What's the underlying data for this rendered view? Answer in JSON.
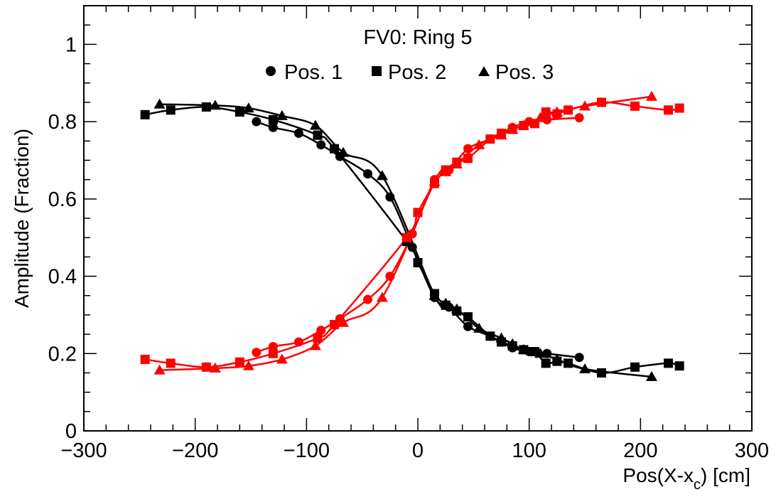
{
  "chart_data": {
    "type": "scatter",
    "title": "FV0: Ring 5",
    "xlabel": "Pos(X-x",
    "xlabel_sub": "c",
    "xlabel_suffix": ") [cm]",
    "ylabel": "Amplitude (Fraction)",
    "xlim": [
      -300,
      300
    ],
    "ylim": [
      0,
      1.1
    ],
    "xticks": [
      -300,
      -200,
      -100,
      0,
      100,
      200,
      300
    ],
    "xtick_labels": [
      "−300",
      "−200",
      "−100",
      "0",
      "100",
      "200",
      "300"
    ],
    "yticks": [
      0,
      0.2,
      0.4,
      0.6,
      0.8,
      1
    ],
    "ytick_labels": [
      "0",
      "0.2",
      "0.4",
      "0.6",
      "0.8",
      "1"
    ],
    "grid": false,
    "legend_position": "top-center",
    "legend": [
      {
        "label": "Pos. 1",
        "marker": "circle"
      },
      {
        "label": "Pos. 2",
        "marker": "square"
      },
      {
        "label": "Pos. 3",
        "marker": "triangle"
      }
    ],
    "colors": {
      "side_a": "#000000",
      "side_b": "#ff0000"
    },
    "series": [
      {
        "marker": "circle",
        "color": "#000000",
        "x": [
          -145,
          -130,
          -107,
          -87,
          -70,
          -45,
          -25,
          -5,
          15,
          28,
          45,
          65,
          85,
          100,
          116,
          145
        ],
        "y": [
          0.8,
          0.785,
          0.77,
          0.74,
          0.71,
          0.665,
          0.605,
          0.475,
          0.345,
          0.32,
          0.27,
          0.245,
          0.215,
          0.205,
          0.2,
          0.19
        ]
      },
      {
        "marker": "square",
        "color": "#000000",
        "x": [
          -245,
          -222,
          -190,
          -160,
          -130,
          -90,
          -75,
          -10,
          0,
          15,
          25,
          35,
          45,
          65,
          75,
          85,
          95,
          105,
          115,
          125,
          135,
          165,
          195,
          225,
          235
        ],
        "y": [
          0.818,
          0.83,
          0.838,
          0.825,
          0.805,
          0.765,
          0.73,
          0.49,
          0.435,
          0.355,
          0.325,
          0.31,
          0.295,
          0.245,
          0.23,
          0.22,
          0.21,
          0.205,
          0.175,
          0.18,
          0.175,
          0.15,
          0.165,
          0.175,
          0.168
        ]
      },
      {
        "marker": "triangle",
        "color": "#000000",
        "x": [
          -232,
          -182,
          -152,
          -122,
          -92,
          -67,
          -32,
          15,
          25,
          35,
          55,
          75,
          85,
          95,
          110,
          125,
          150,
          210
        ],
        "y": [
          0.845,
          0.842,
          0.835,
          0.815,
          0.79,
          0.72,
          0.66,
          0.35,
          0.33,
          0.315,
          0.265,
          0.24,
          0.225,
          0.21,
          0.2,
          0.185,
          0.16,
          0.14
        ]
      },
      {
        "marker": "circle",
        "color": "#ff0000",
        "x": [
          -145,
          -130,
          -107,
          -87,
          -70,
          -45,
          -25,
          -5,
          15,
          28,
          45,
          65,
          85,
          100,
          116,
          145
        ],
        "y": [
          0.203,
          0.218,
          0.23,
          0.26,
          0.29,
          0.34,
          0.4,
          0.51,
          0.65,
          0.675,
          0.73,
          0.755,
          0.785,
          0.8,
          0.805,
          0.81
        ]
      },
      {
        "marker": "square",
        "color": "#ff0000",
        "x": [
          -245,
          -222,
          -190,
          -160,
          -130,
          -90,
          -75,
          -10,
          0,
          15,
          25,
          35,
          45,
          65,
          75,
          85,
          95,
          105,
          115,
          125,
          135,
          165,
          195,
          225,
          235
        ],
        "y": [
          0.185,
          0.175,
          0.165,
          0.178,
          0.2,
          0.24,
          0.275,
          0.5,
          0.565,
          0.64,
          0.675,
          0.695,
          0.705,
          0.755,
          0.77,
          0.78,
          0.79,
          0.795,
          0.825,
          0.82,
          0.83,
          0.85,
          0.84,
          0.83,
          0.835
        ]
      },
      {
        "marker": "triangle",
        "color": "#ff0000",
        "x": [
          -232,
          -182,
          -152,
          -122,
          -92,
          -67,
          -32,
          15,
          25,
          35,
          55,
          75,
          85,
          95,
          110,
          125,
          150,
          210
        ],
        "y": [
          0.157,
          0.162,
          0.168,
          0.185,
          0.22,
          0.28,
          0.345,
          0.645,
          0.67,
          0.69,
          0.74,
          0.765,
          0.78,
          0.79,
          0.81,
          0.825,
          0.84,
          0.865
        ]
      }
    ]
  }
}
